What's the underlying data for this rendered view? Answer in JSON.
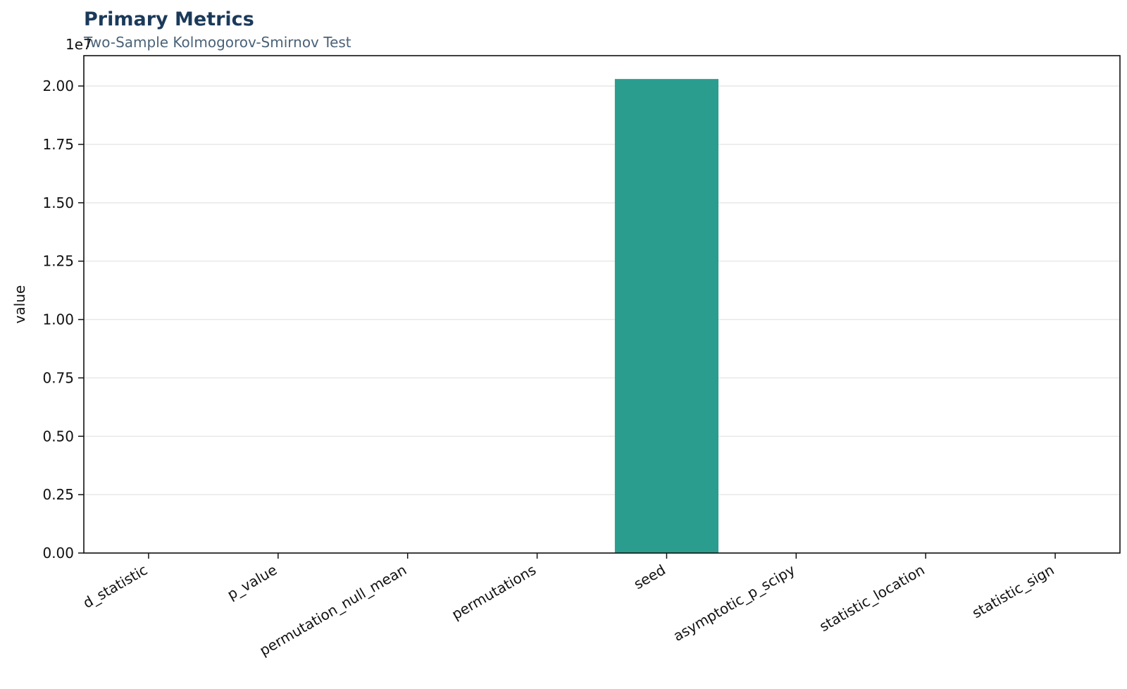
{
  "chart_data": {
    "type": "bar",
    "title": "Primary Metrics",
    "subtitle": "Two-Sample Kolmogorov-Smirnov Test",
    "ylabel": "value",
    "xlabel": "",
    "y_offset_label": "1e7",
    "y_scale": 10000000,
    "ylim": [
      0,
      21300000
    ],
    "yticks": [
      0,
      2500000,
      5000000,
      7500000,
      10000000,
      12500000,
      15000000,
      17500000,
      20000000
    ],
    "ytick_labels": [
      "0.00",
      "0.25",
      "0.50",
      "0.75",
      "1.00",
      "1.25",
      "1.50",
      "1.75",
      "2.00"
    ],
    "categories": [
      "d_statistic",
      "p_value",
      "permutation_null_mean",
      "permutations",
      "seed",
      "asymptotic_p_scipy",
      "statistic_location",
      "statistic_sign"
    ],
    "values": [
      0,
      0,
      0,
      0,
      20300000,
      0,
      0,
      0
    ],
    "bar_color": "#2a9d8f",
    "grid": true,
    "grid_color": "#e8e8e8"
  }
}
